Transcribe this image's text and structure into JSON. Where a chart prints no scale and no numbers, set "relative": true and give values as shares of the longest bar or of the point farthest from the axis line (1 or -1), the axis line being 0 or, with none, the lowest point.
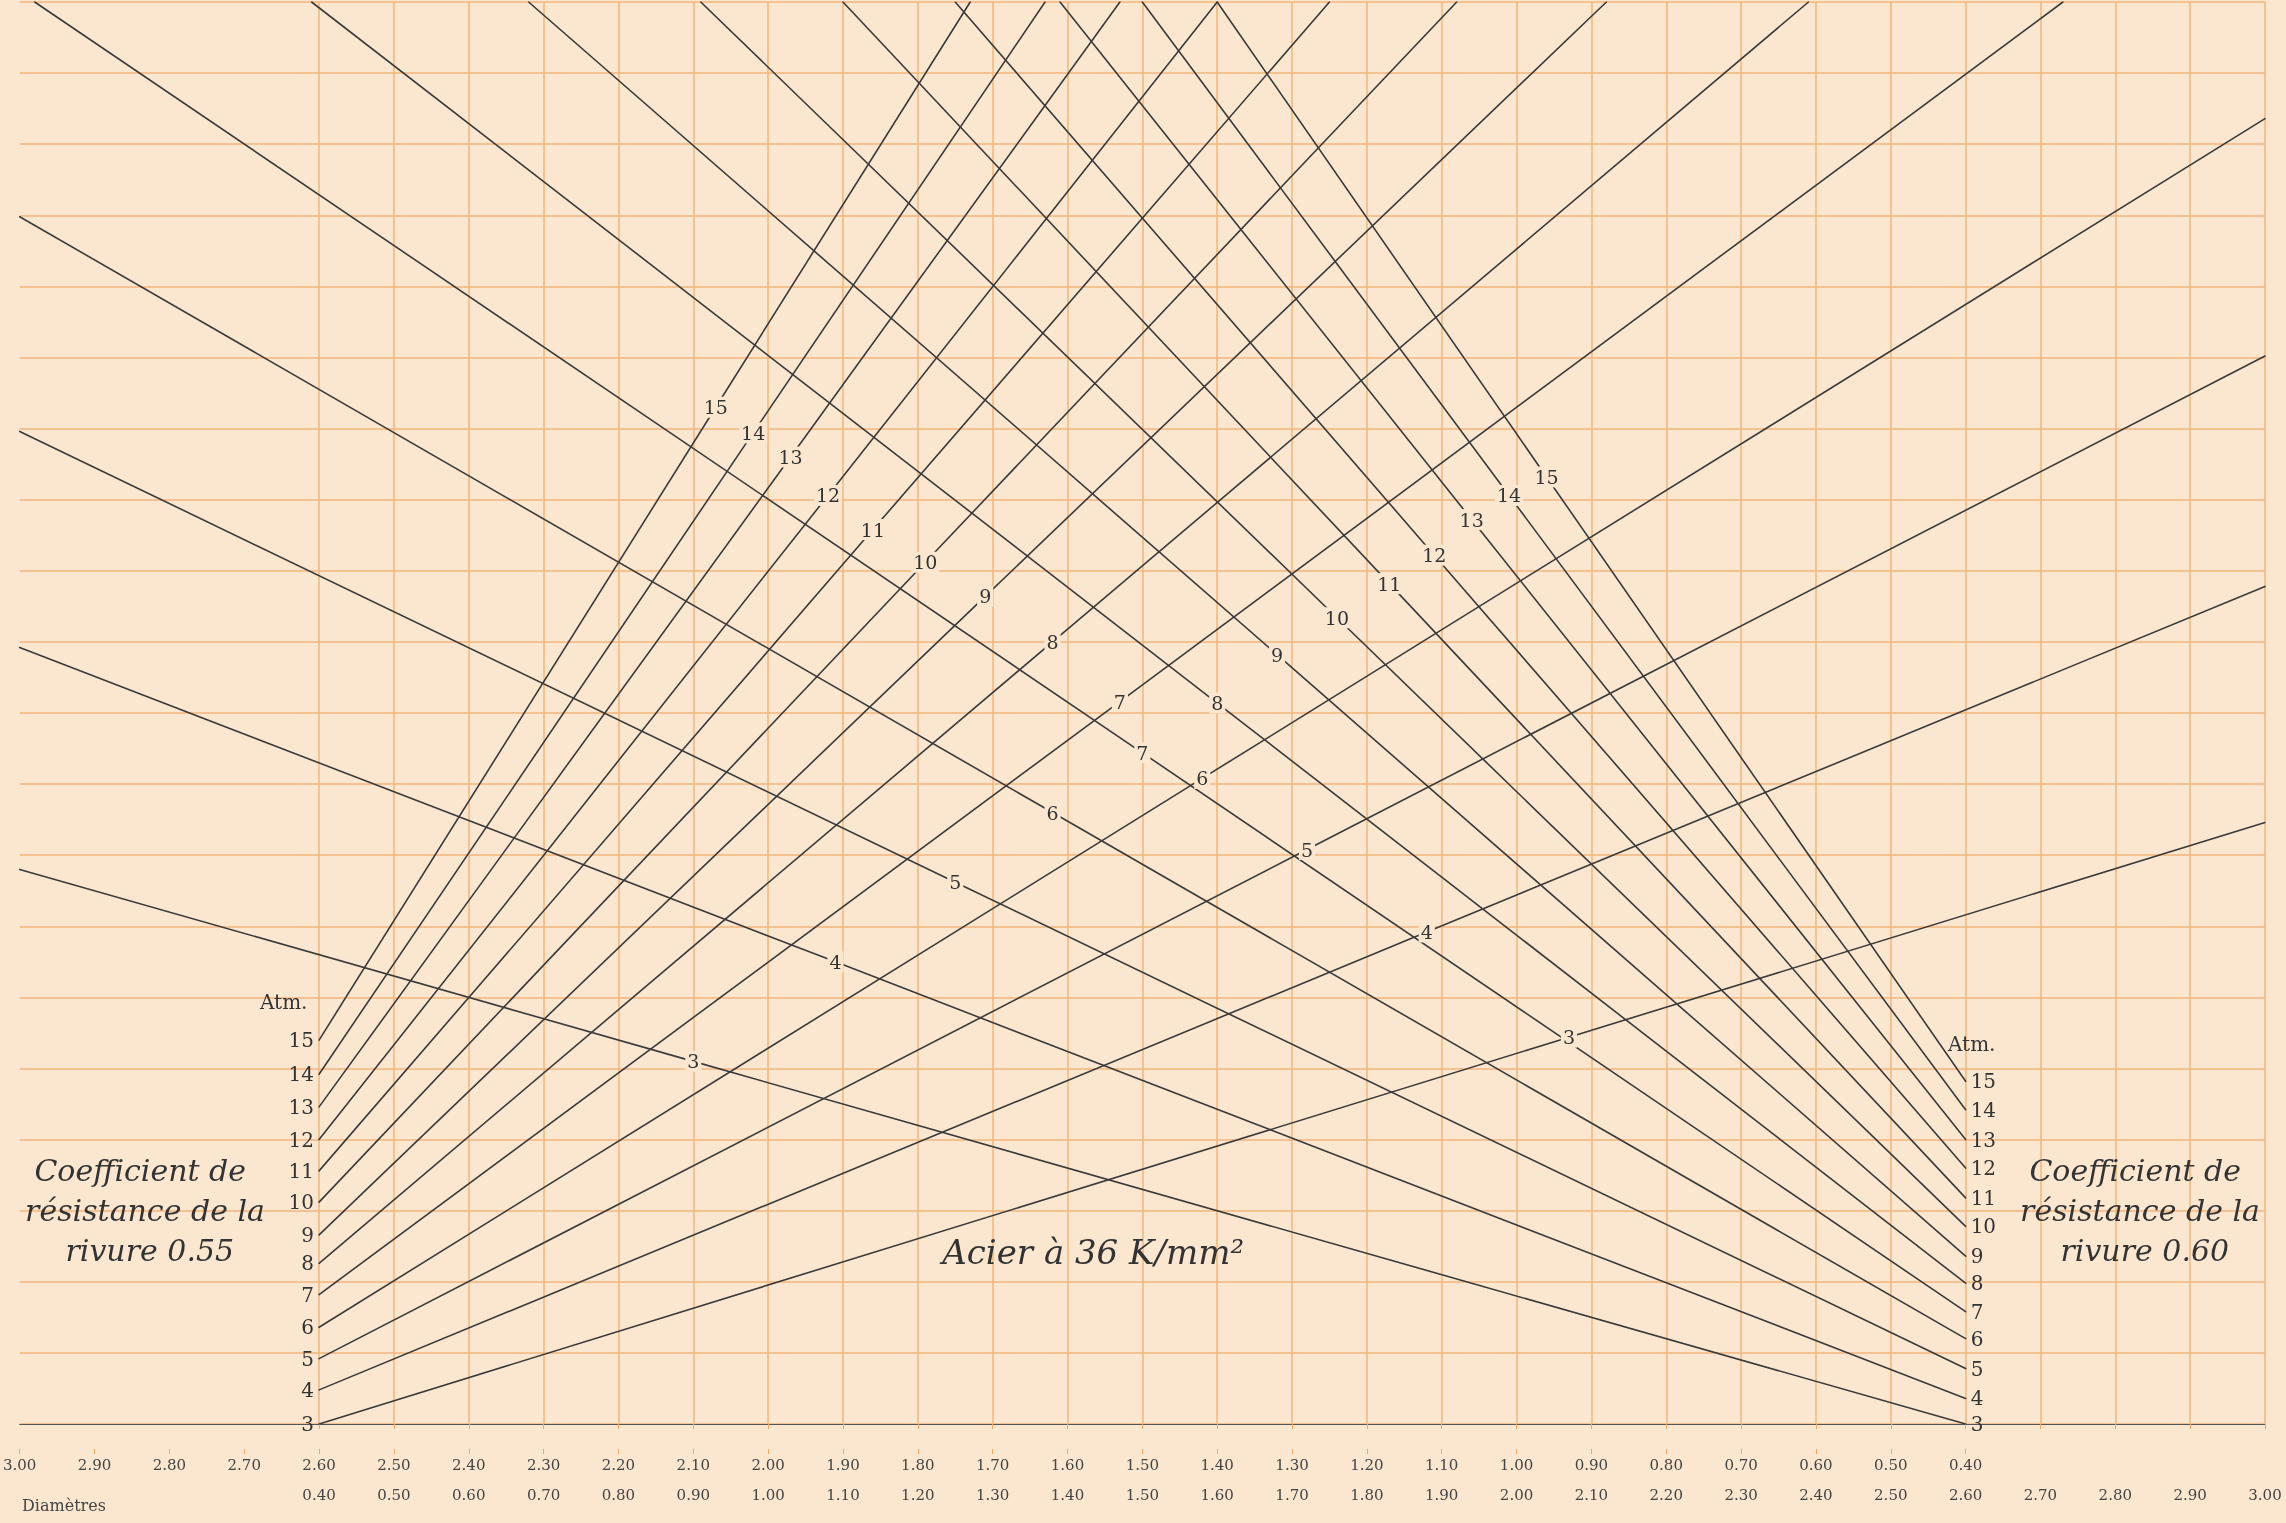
{
  "chart_data": {
    "type": "line",
    "title": "Acier à 36 K/mm²",
    "xlabel": "Diamètres",
    "relative": true,
    "color": "#3a3a3a",
    "grid": true,
    "legend": false,
    "marker": "none",
    "line_style": "solid",
    "xlim": [
      0,
      3.0
    ],
    "xticks": [
      {
        "value": 0.4,
        "label": "0.40"
      },
      {
        "value": 0.5,
        "label": "0.50"
      },
      {
        "value": 0.6,
        "label": "0.60"
      },
      {
        "value": 0.7,
        "label": "0.70"
      },
      {
        "value": 0.8,
        "label": "0.80"
      },
      {
        "value": 0.9,
        "label": "0.90"
      },
      {
        "value": 1.0,
        "label": "1.00"
      },
      {
        "value": 1.1,
        "label": "1.10"
      },
      {
        "value": 1.2,
        "label": "1.20"
      },
      {
        "value": 1.3,
        "label": "1.30"
      },
      {
        "value": 1.4,
        "label": "1.40"
      },
      {
        "value": 1.5,
        "label": "1.50"
      },
      {
        "value": 1.6,
        "label": "1.60"
      },
      {
        "value": 1.7,
        "label": "1.70"
      },
      {
        "value": 1.8,
        "label": "1.80"
      },
      {
        "value": 1.9,
        "label": "1.90"
      },
      {
        "value": 2.0,
        "label": "2.00"
      },
      {
        "value": 2.1,
        "label": "2.10"
      },
      {
        "value": 2.2,
        "label": "2.20"
      },
      {
        "value": 2.3,
        "label": "2.30"
      },
      {
        "value": 2.4,
        "label": "2.40"
      },
      {
        "value": 2.5,
        "label": "2.50"
      },
      {
        "value": 2.6,
        "label": "2.60"
      },
      {
        "value": 2.7,
        "label": "2.70"
      },
      {
        "value": 2.8,
        "label": "2.80"
      },
      {
        "value": 2.9,
        "label": "2.90"
      },
      {
        "value": 3.0,
        "label": "3.00"
      }
    ],
    "x2lim": [
      3.0,
      0
    ],
    "x2ticks": [
      {
        "value": 3.0,
        "label": "3.00"
      },
      {
        "value": 2.9,
        "label": "2.90"
      },
      {
        "value": 2.8,
        "label": "2.80"
      },
      {
        "value": 2.7,
        "label": "2.70"
      },
      {
        "value": 2.6,
        "label": "2.60"
      },
      {
        "value": 2.5,
        "label": "2.50"
      },
      {
        "value": 2.4,
        "label": "2.40"
      },
      {
        "value": 2.3,
        "label": "2.30"
      },
      {
        "value": 2.2,
        "label": "2.20"
      },
      {
        "value": 2.1,
        "label": "2.10"
      },
      {
        "value": 2.0,
        "label": "2.00"
      },
      {
        "value": 1.9,
        "label": "1.90"
      },
      {
        "value": 1.8,
        "label": "1.80"
      },
      {
        "value": 1.7,
        "label": "1.70"
      },
      {
        "value": 1.6,
        "label": "1.60"
      },
      {
        "value": 1.5,
        "label": "1.50"
      },
      {
        "value": 1.4,
        "label": "1.40"
      },
      {
        "value": 1.3,
        "label": "1.30"
      },
      {
        "value": 1.2,
        "label": "1.20"
      },
      {
        "value": 1.1,
        "label": "1.10"
      },
      {
        "value": 1.0,
        "label": "1.00"
      },
      {
        "value": 0.9,
        "label": "0.90"
      },
      {
        "value": 0.8,
        "label": "0.80"
      },
      {
        "value": 0.7,
        "label": "0.70"
      },
      {
        "value": 0.6,
        "label": "0.60"
      },
      {
        "value": 0.5,
        "label": "0.50"
      },
      {
        "value": 0.4,
        "label": "0.40"
      }
    ],
    "series": [
      {
        "name": "3",
        "x": [
          0.4,
          2.07,
          3.0
        ],
        "values": [
          0,
          0.272,
          0.423
        ]
      },
      {
        "name": "4",
        "x": [
          0.4,
          1.88,
          3.0
        ],
        "values": [
          0.024,
          0.346,
          0.589
        ]
      },
      {
        "name": "5",
        "x": [
          0.4,
          1.72,
          3.0
        ],
        "values": [
          0.046,
          0.404,
          0.751
        ]
      },
      {
        "name": "6",
        "x": [
          0.4,
          1.58,
          3.0
        ],
        "values": [
          0.068,
          0.454,
          0.918
        ]
      },
      {
        "name": "7",
        "x": [
          0.4,
          1.47,
          2.73
        ],
        "values": [
          0.091,
          0.508,
          1
        ]
      },
      {
        "name": "8",
        "x": [
          0.4,
          1.38,
          2.39
        ],
        "values": [
          0.113,
          0.55,
          1
        ]
      },
      {
        "name": "9",
        "x": [
          0.4,
          1.29,
          2.12
        ],
        "values": [
          0.133,
          0.582,
          1
        ]
      },
      {
        "name": "10",
        "x": [
          0.4,
          1.21,
          1.92
        ],
        "values": [
          0.156,
          0.606,
          1
        ]
      },
      {
        "name": "11",
        "x": [
          0.4,
          1.14,
          1.75
        ],
        "values": [
          0.178,
          0.629,
          1
        ]
      },
      {
        "name": "12",
        "x": [
          0.4,
          1.08,
          1.6
        ],
        "values": [
          0.2,
          0.653,
          1
        ]
      },
      {
        "name": "13",
        "x": [
          0.4,
          1.03,
          1.47
        ],
        "values": [
          0.223,
          0.68,
          1
        ]
      },
      {
        "name": "14",
        "x": [
          0.4,
          0.98,
          1.37
        ],
        "values": [
          0.246,
          0.697,
          1
        ]
      },
      {
        "name": "15",
        "x": [
          0.4,
          0.93,
          1.27
        ],
        "values": [
          0.27,
          0.715,
          1
        ]
      },
      {
        "name": "3",
        "x": [
          0,
          0.9,
          2.6
        ],
        "values": [
          0.39,
          0.255,
          0
        ]
      },
      {
        "name": "4",
        "x": [
          0,
          1.09,
          2.6
        ],
        "values": [
          0.546,
          0.325,
          0.018
        ]
      },
      {
        "name": "5",
        "x": [
          0,
          1.25,
          2.6
        ],
        "values": [
          0.698,
          0.381,
          0.039
        ]
      },
      {
        "name": "6",
        "x": [
          0,
          1.38,
          2.6
        ],
        "values": [
          0.849,
          0.43,
          0.06
        ]
      },
      {
        "name": "7",
        "x": [
          0.02,
          1.5,
          2.6
        ],
        "values": [
          1,
          0.472,
          0.079
        ]
      },
      {
        "name": "8",
        "x": [
          0.39,
          1.6,
          2.6
        ],
        "values": [
          1,
          0.507,
          0.099
        ]
      },
      {
        "name": "9",
        "x": [
          0.68,
          1.68,
          2.6
        ],
        "values": [
          1,
          0.541,
          0.118
        ]
      },
      {
        "name": "10",
        "x": [
          0.91,
          1.76,
          2.6
        ],
        "values": [
          1,
          0.567,
          0.139
        ]
      },
      {
        "name": "11",
        "x": [
          1.1,
          1.83,
          2.6
        ],
        "values": [
          1,
          0.591,
          0.159
        ]
      },
      {
        "name": "12",
        "x": [
          1.25,
          1.89,
          2.6
        ],
        "values": [
          1,
          0.611,
          0.18
        ]
      },
      {
        "name": "13",
        "x": [
          1.39,
          1.94,
          2.6
        ],
        "values": [
          1,
          0.636,
          0.2
        ]
      },
      {
        "name": "14",
        "x": [
          1.5,
          1.99,
          2.6
        ],
        "values": [
          1,
          0.653,
          0.221
        ]
      },
      {
        "name": "15",
        "x": [
          1.6,
          2.04,
          2.6
        ],
        "values": [
          1,
          0.666,
          0.241
        ]
      }
    ],
    "annotations": [
      "Atm.",
      "Atm.",
      "Coefficient de résistance de la rivure 0.55",
      "Coefficient de résistance de la rivure 0.60"
    ]
  }
}
